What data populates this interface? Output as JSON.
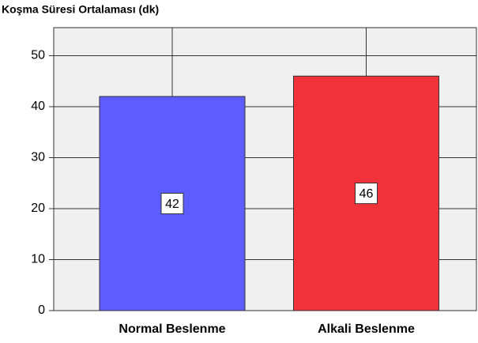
{
  "chart_data": {
    "type": "bar",
    "title": "Koşma Süresi Ortalaması (dk)",
    "categories": [
      "Normal Beslenme",
      "Alkali Beslenme"
    ],
    "values": [
      42,
      46
    ],
    "colors": [
      "#5c5cff",
      "#f0323a"
    ],
    "ylim": [
      0,
      55.5
    ],
    "yticks": [
      0,
      10,
      20,
      30,
      40,
      50
    ],
    "grid": true
  }
}
